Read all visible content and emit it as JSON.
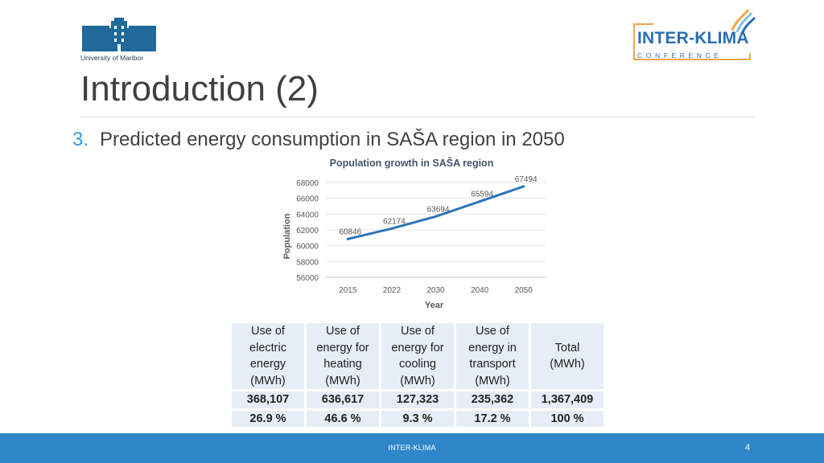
{
  "logos": {
    "university_text": "University of Maribor",
    "conference_title": "INTER-KLIMA",
    "conference_sub": "CONFERENCE"
  },
  "slide": {
    "title": "Introduction (2)",
    "bullet_number": "3.",
    "bullet_text": "Predicted energy consumption in SAŠA region in 2050"
  },
  "chart_data": {
    "type": "line",
    "title": "Population growth in SAŠA region",
    "xlabel": "Year",
    "ylabel": "Population",
    "categories": [
      "2015",
      "2022",
      "2030",
      "2040",
      "2050"
    ],
    "values": [
      60846,
      62174,
      63694,
      65594,
      67494
    ],
    "ylim": [
      56000,
      68000
    ],
    "yticks": [
      56000,
      58000,
      60000,
      62000,
      64000,
      66000,
      68000
    ],
    "data_labels": true,
    "grid": true,
    "series_color": "#2e75b6"
  },
  "table": {
    "headers": [
      [
        "Use of",
        "electric",
        "energy",
        "(MWh)"
      ],
      [
        "Use of",
        "energy for",
        "heating",
        "(MWh)"
      ],
      [
        "Use of",
        "energy for",
        "cooling",
        "(MWh)"
      ],
      [
        "Use of",
        "energy in",
        "transport",
        "(MWh)"
      ],
      [
        "Total",
        "(MWh)"
      ]
    ],
    "values": [
      "368,107",
      "636,617",
      "127,323",
      "235,362",
      "1,367,409"
    ],
    "shares": [
      "26.9 %",
      "46.6 %",
      "9.3 %",
      "17.2 %",
      "100 %"
    ]
  },
  "footer": {
    "text": "INTER-KLIMA",
    "page_number": "4"
  }
}
